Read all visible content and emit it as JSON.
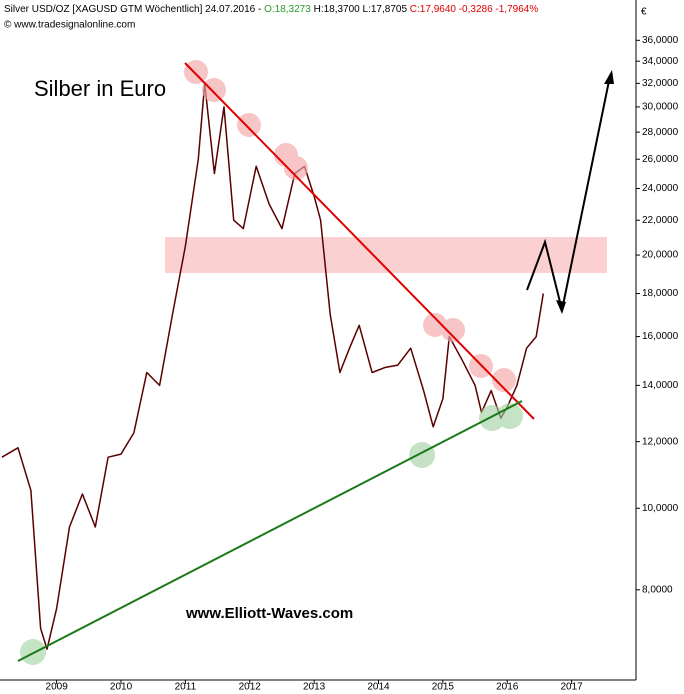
{
  "header": {
    "instrument": "Silver USD/OZ [XAGUSD GTM  Wöchentlich] 24.07.2016 -",
    "open": "O:18,3273",
    "high_low": "H:18,3700 L:17,8705",
    "close": "C:17,9640 -0,3286 -1,7964%",
    "source": "© www.tradesignalonline.com",
    "currency": "€",
    "watermark": "www.Elliott-Waves.com"
  },
  "chart_data": {
    "type": "line",
    "title": "Silber in Euro",
    "log_scale": true,
    "color": "#5a0000",
    "x": [
      2008.15,
      2008.4,
      2008.6,
      2008.75,
      2008.85,
      2009.0,
      2009.2,
      2009.4,
      2009.6,
      2009.8,
      2010.0,
      2010.2,
      2010.4,
      2010.6,
      2010.8,
      2011.0,
      2011.2,
      2011.3,
      2011.45,
      2011.6,
      2011.75,
      2011.9,
      2012.1,
      2012.3,
      2012.5,
      2012.7,
      2012.85,
      2013.0,
      2013.1,
      2013.25,
      2013.4,
      2013.55,
      2013.7,
      2013.9,
      2014.1,
      2014.3,
      2014.5,
      2014.7,
      2014.85,
      2015.0,
      2015.1,
      2015.3,
      2015.5,
      2015.6,
      2015.75,
      2015.9,
      2016.0,
      2016.15,
      2016.3,
      2016.45,
      2016.56
    ],
    "series": [
      {
        "name": "Silver",
        "color": "#5a0000",
        "values": [
          11.5,
          11.8,
          10.5,
          7.2,
          6.8,
          7.6,
          9.5,
          10.4,
          9.5,
          11.5,
          11.6,
          12.3,
          14.5,
          14.0,
          17.0,
          20.5,
          26,
          32,
          25,
          30,
          22,
          21.5,
          25.5,
          23,
          21.5,
          25,
          25.5,
          23.5,
          22,
          17,
          14.5,
          15.5,
          16.5,
          14.5,
          14.7,
          14.8,
          15.5,
          13.8,
          12.5,
          13.5,
          16.0,
          15.0,
          14.0,
          13.0,
          13.8,
          12.8,
          13.2,
          14.0,
          15.5,
          16.0,
          18.0
        ]
      }
    ],
    "xlim": [
      2008.12,
      2018.0
    ],
    "xticks": [
      2009,
      2010,
      2011,
      2012,
      2013,
      2014,
      2015,
      2016,
      2017
    ],
    "ylim": [
      6.25,
      40.2
    ],
    "yticks": [
      {
        "value": 8,
        "label": "8,0000"
      },
      {
        "value": 10,
        "label": "10,0000"
      },
      {
        "value": 12,
        "label": "12,0000"
      },
      {
        "value": 14,
        "label": "14,0000"
      },
      {
        "value": 16,
        "label": "16,0000"
      },
      {
        "value": 18,
        "label": "18,0000"
      },
      {
        "value": 20,
        "label": "20,0000"
      },
      {
        "value": 22,
        "label": "22,0000"
      },
      {
        "value": 24,
        "label": "24,0000"
      },
      {
        "value": 26,
        "label": "26,0000"
      },
      {
        "value": 28,
        "label": "28,0000"
      },
      {
        "value": 30,
        "label": "30,0000"
      },
      {
        "value": 32,
        "label": "32,0000"
      },
      {
        "value": 34,
        "label": "34,0000"
      },
      {
        "value": 36,
        "label": "36,0000"
      }
    ]
  }
}
